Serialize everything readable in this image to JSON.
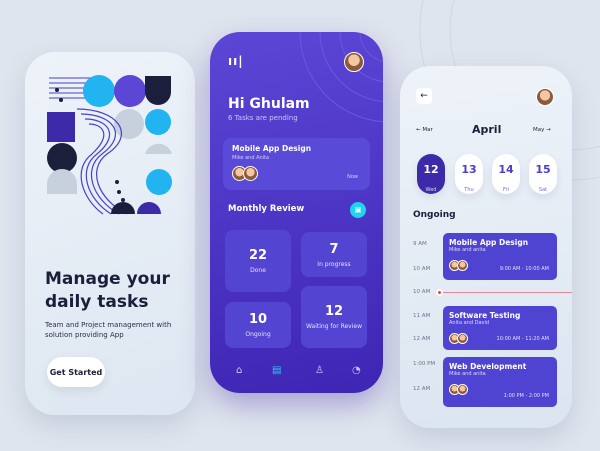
{
  "onboarding": {
    "title": "Manage your daily tasks",
    "subtitle": "Team and Project management with solution providing App",
    "cta": "Get Started"
  },
  "home": {
    "greeting": "Hi Ghulam",
    "pending": "6 Tasks are pending",
    "task_card": {
      "title": "Mobile App Design",
      "members": "Mike and Anita",
      "status": "Now"
    },
    "section_title": "Monthly Review",
    "stats": [
      {
        "value": "22",
        "label": "Done"
      },
      {
        "value": "7",
        "label": "In progress"
      },
      {
        "value": "10",
        "label": "Ongoing"
      },
      {
        "value": "12",
        "label": "Waiting for Review"
      }
    ],
    "nav": [
      "home-icon",
      "document-icon",
      "user-icon",
      "bell-icon"
    ],
    "accent": "#22d3ee"
  },
  "calendar": {
    "month": "April",
    "prev": "Mar",
    "next": "May",
    "days": [
      {
        "num": "12",
        "name": "Wed",
        "selected": true
      },
      {
        "num": "13",
        "name": "Thu"
      },
      {
        "num": "14",
        "name": "Fri"
      },
      {
        "num": "15",
        "name": "Sat"
      }
    ],
    "section": "Ongoing",
    "times": [
      "9 AM",
      "10 AM",
      "10 AM",
      "11 AM",
      "12 AM",
      "1:00 PM",
      "12 AM"
    ],
    "events": [
      {
        "title": "Mobile App Design",
        "members": "Mike and anita",
        "time": "9:00 AM - 10:00 AM"
      },
      {
        "title": "Software Testing",
        "members": "Anita and David",
        "time": "10:00 AM - 11:20 AM"
      },
      {
        "title": "Web Development",
        "members": "Mike and anita",
        "time": "1:00 PM - 2:00 PM"
      }
    ]
  }
}
